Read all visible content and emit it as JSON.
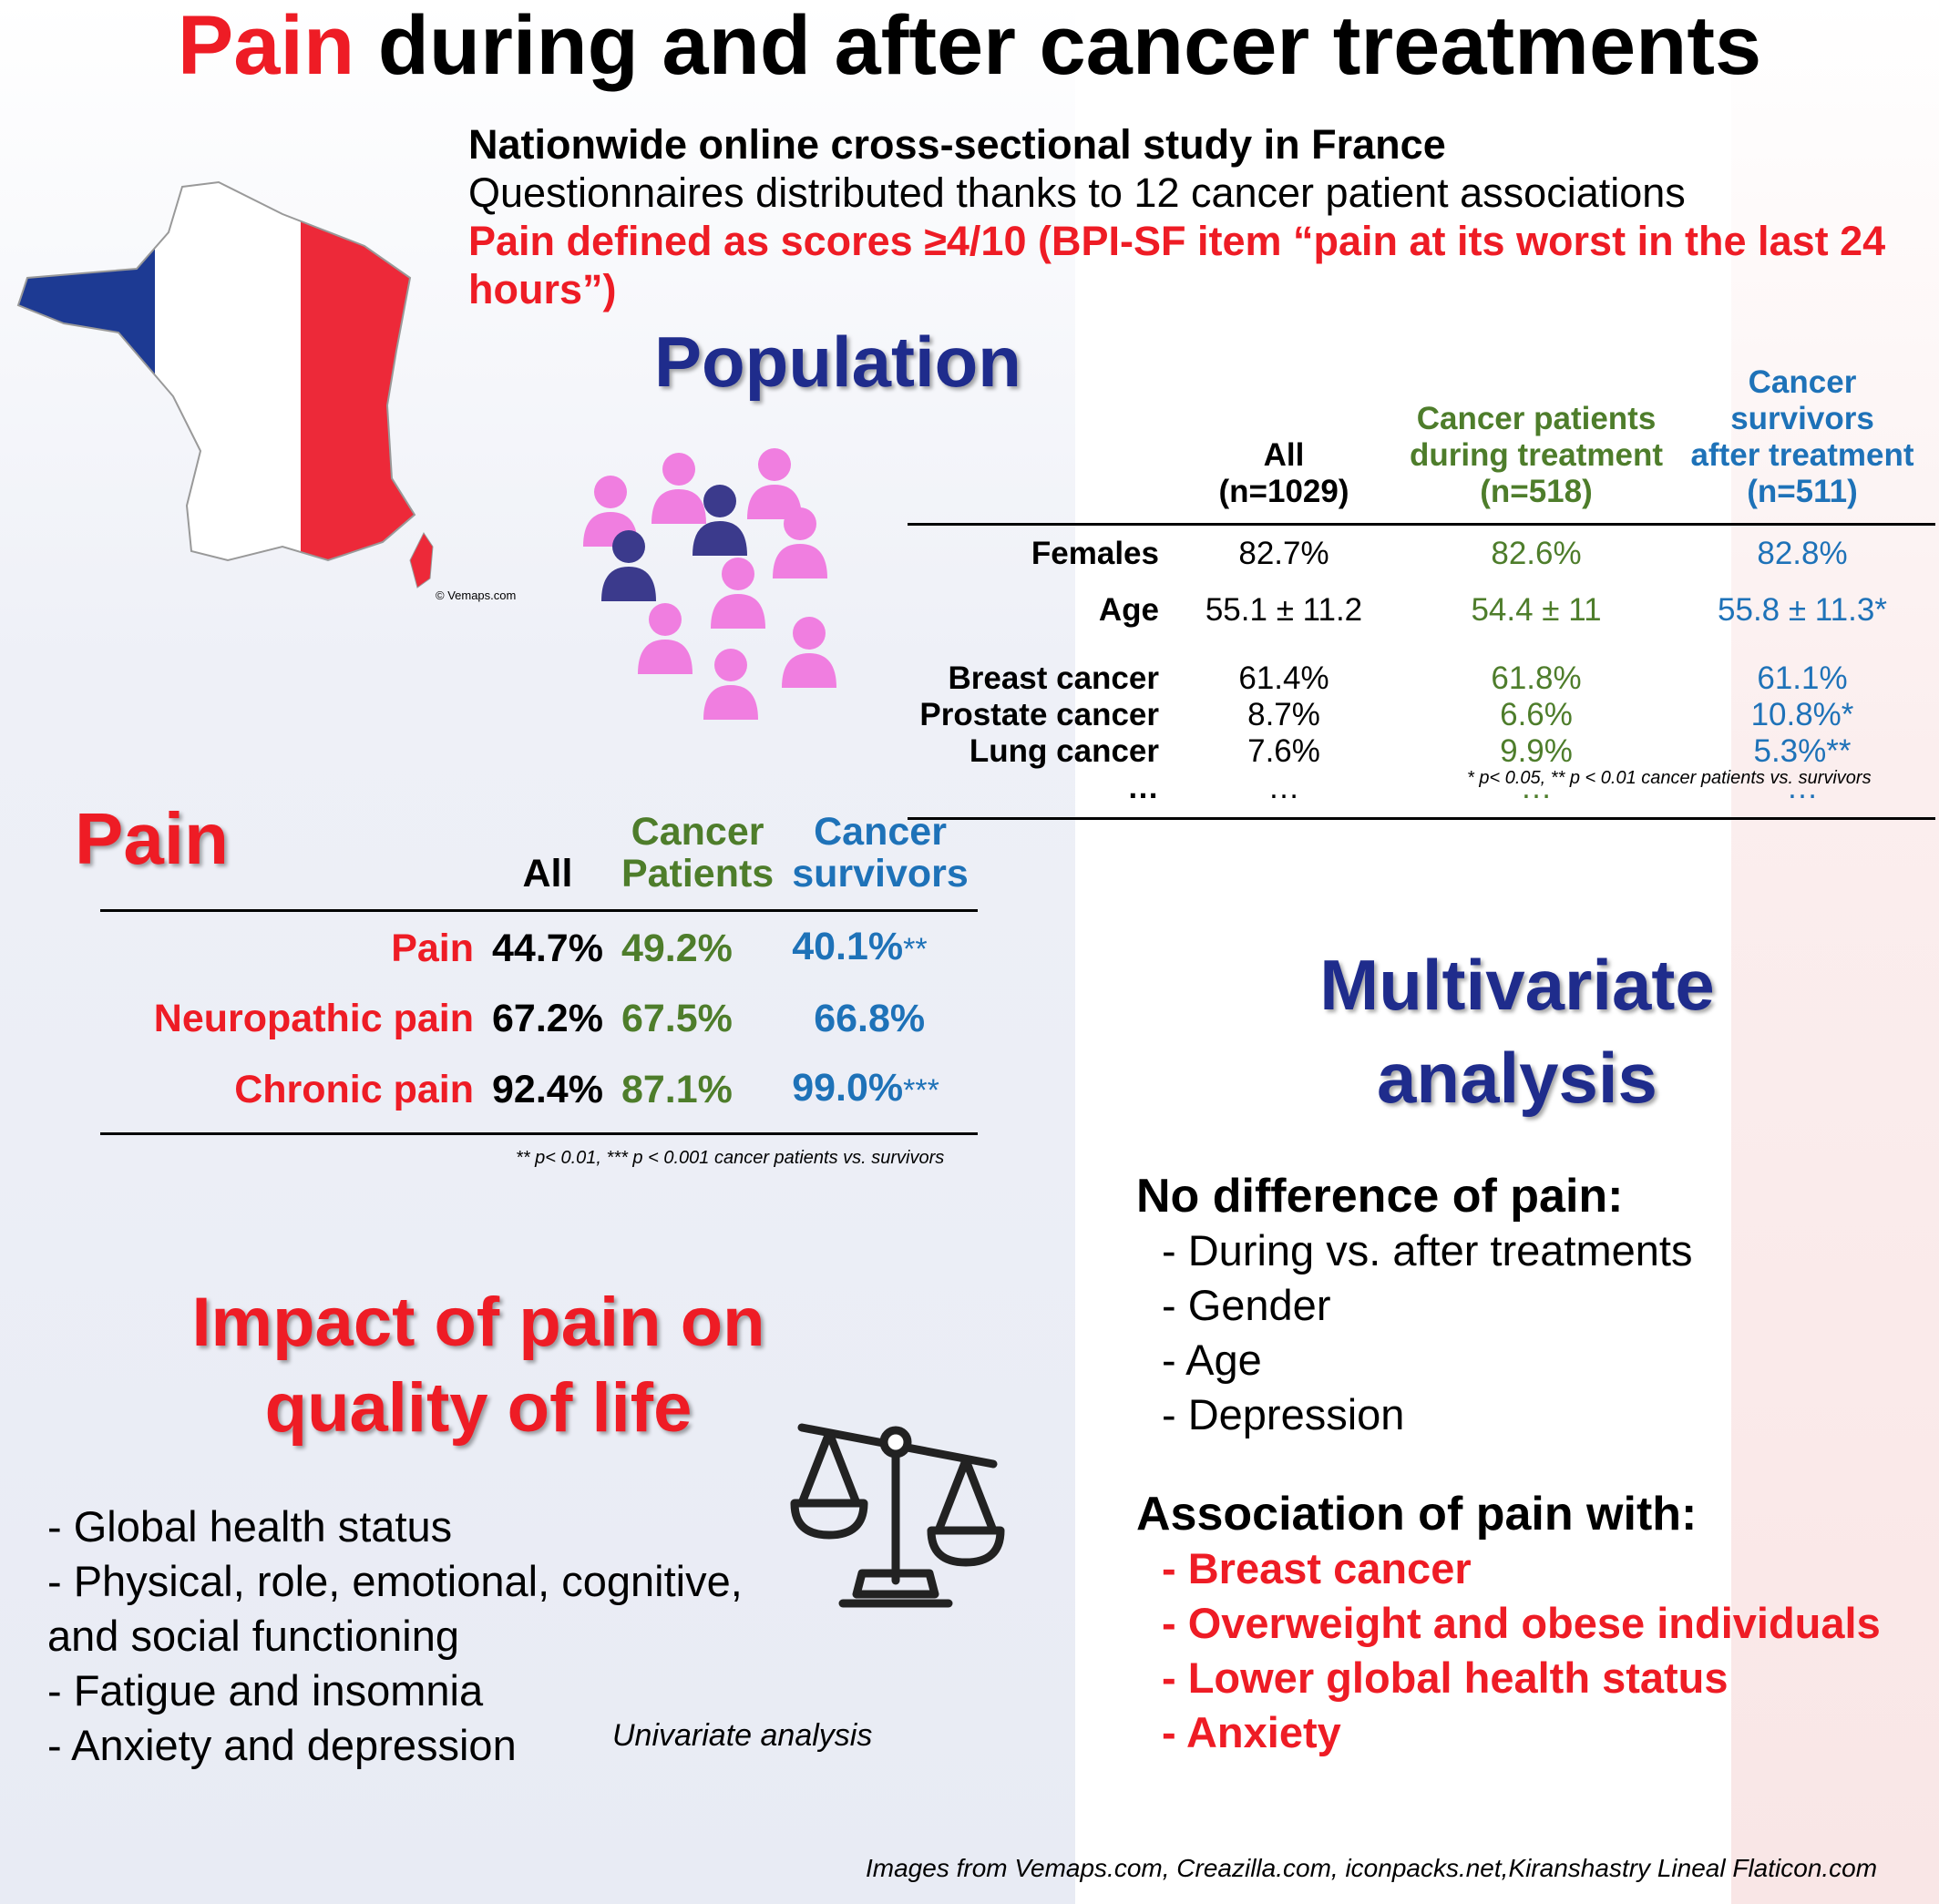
{
  "title": {
    "highlight": "Pain",
    "rest": " during and after cancer treatments"
  },
  "study": {
    "line1": "Nationwide online cross-sectional study in France",
    "line2": "Questionnaires distributed thanks to 12 cancer patient associations",
    "line3": "Pain defined as scores ≥4/10 (BPI-SF item “pain at its worst in the last 24 hours”)"
  },
  "map_credit": "© Vemaps.com",
  "population": {
    "heading": "Population",
    "columns": [
      {
        "line1": "All",
        "line2": "(n=1029)"
      },
      {
        "line1": "Cancer patients",
        "line2": "during treatment",
        "line3": "(n=518)"
      },
      {
        "line1": "Cancer survivors",
        "line2": "after treatment",
        "line3": "(n=511)"
      }
    ],
    "rows": [
      {
        "label": "Females",
        "all": "82.7%",
        "patients": "82.6%",
        "survivors": "82.8%"
      },
      {
        "label": "Age",
        "all": "55.1 ± 11.2",
        "patients": "54.4 ± 11",
        "survivors": "55.8 ± 11.3*"
      },
      {
        "label": "Breast cancer",
        "all": "61.4%",
        "patients": "61.8%",
        "survivors": "61.1%"
      },
      {
        "label": "Prostate cancer",
        "all": "8.7%",
        "patients": "6.6%",
        "survivors": "10.8%*"
      },
      {
        "label": "Lung cancer",
        "all": "7.6%",
        "patients": "9.9%",
        "survivors": "5.3%**"
      },
      {
        "label": "…",
        "all": "…",
        "patients": "…",
        "survivors": "…"
      }
    ],
    "footnote": "* p< 0.05, ** p < 0.01 cancer patients vs. survivors"
  },
  "pain": {
    "heading": "Pain",
    "columns": [
      {
        "line1": "All"
      },
      {
        "line1": "Cancer",
        "line2": "Patients"
      },
      {
        "line1": "Cancer",
        "line2": "survivors"
      }
    ],
    "rows": [
      {
        "label": "Pain",
        "all": "44.7%",
        "patients": "49.2%",
        "survivors": "40.1%",
        "sig": "**"
      },
      {
        "label": "Neuropathic pain",
        "all": "67.2%",
        "patients": "67.5%",
        "survivors": "66.8%",
        "sig": ""
      },
      {
        "label": "Chronic pain",
        "all": "92.4%",
        "patients": "87.1%",
        "survivors": "99.0%",
        "sig": "***"
      }
    ],
    "footnote": "** p< 0.01, *** p < 0.001 cancer patients vs. survivors"
  },
  "impact": {
    "heading_line1": "Impact of pain on",
    "heading_line2": "quality of life",
    "items": [
      "- Global health status",
      "- Physical, role, emotional, cognitive,",
      "and social functioning",
      "- Fatigue and insomnia",
      "- Anxiety and depression"
    ],
    "note": "Univariate analysis"
  },
  "multivariate": {
    "heading_line1": "Multivariate",
    "heading_line2": "analysis",
    "no_diff_title": "No difference of pain:",
    "no_diff_items": [
      "- During vs. after treatments",
      "- Gender",
      "- Age",
      "- Depression"
    ],
    "assoc_title": "Association of pain with:",
    "assoc_items": [
      "- Breast cancer",
      "- Overweight and obese individuals",
      "- Lower global health status",
      "- Anxiety"
    ]
  },
  "credits": "Images from Vemaps.com, Creazilla.com, iconpacks.net,Kiranshastry Lineal Flaticon.com",
  "colors": {
    "red": "#ee1c25",
    "green": "#4e7d2b",
    "blue": "#1e72b8",
    "navy": "#1f2c8c",
    "pink": "#f07ee0",
    "person_navy": "#3b3a8c"
  },
  "icons": [
    "france-flag-map-icon",
    "people-group-icon",
    "balance-scale-icon"
  ]
}
